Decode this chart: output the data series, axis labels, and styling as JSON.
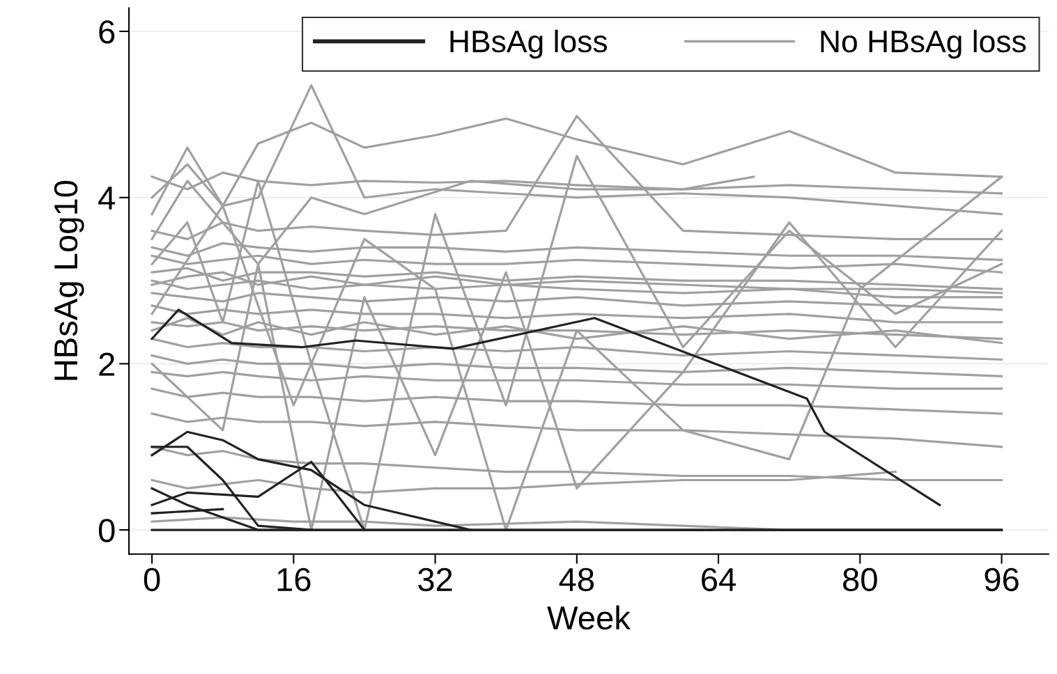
{
  "chart_data": {
    "type": "line",
    "xlabel": "Week",
    "ylabel": "HBsAg Log10",
    "xlim": [
      -2.6,
      101.3
    ],
    "ylim": [
      -0.29,
      6.28
    ],
    "xticks": [
      0,
      16,
      32,
      48,
      64,
      80,
      96
    ],
    "yticks": [
      0,
      2,
      4,
      6
    ],
    "grid": "y",
    "legend": "top right",
    "marker": "none",
    "line_style": "solid",
    "series": [
      {
        "name": "HBsAg loss",
        "color": "#222222",
        "x": [
          0,
          3,
          9,
          17,
          23,
          34,
          50,
          74,
          76,
          89
        ],
        "values": [
          2.3,
          2.65,
          2.25,
          2.2,
          2.28,
          2.18,
          2.55,
          1.58,
          1.18,
          0.3
        ]
      },
      {
        "color": "#222222",
        "x": [
          0,
          4,
          8,
          12,
          18,
          24,
          36,
          96
        ],
        "values": [
          0.9,
          1.18,
          1.08,
          0.85,
          0.72,
          0.3,
          0.0,
          0.0
        ]
      },
      {
        "color": "#222222",
        "x": [
          0,
          4,
          8,
          12,
          18
        ],
        "values": [
          1.0,
          1.0,
          0.6,
          0.05,
          0.0
        ]
      },
      {
        "color": "#222222",
        "x": [
          0,
          4,
          12,
          18,
          24
        ],
        "values": [
          0.3,
          0.45,
          0.4,
          0.82,
          0.0
        ]
      },
      {
        "color": "#222222",
        "x": [
          0,
          4,
          12,
          36
        ],
        "values": [
          0.5,
          0.3,
          0.0,
          0.0
        ]
      },
      {
        "color": "#222222",
        "x": [
          0,
          8
        ],
        "values": [
          0.2,
          0.25
        ]
      },
      {
        "color": "#222222",
        "x": [
          0,
          96
        ],
        "values": [
          0.0,
          0.0
        ]
      },
      {
        "name": "No HBsAg loss",
        "color": "#a0a0a0",
        "x": [
          0,
          4,
          8,
          12,
          18,
          24,
          32,
          40,
          48,
          60,
          72,
          84,
          96
        ],
        "values": [
          4.25,
          4.1,
          4.3,
          4.2,
          4.15,
          4.2,
          4.18,
          4.2,
          4.15,
          4.1,
          4.15,
          4.1,
          4.05
        ]
      },
      {
        "color": "#a0a0a0",
        "x": [
          0,
          4,
          8,
          12,
          18,
          24,
          32,
          40,
          48,
          60,
          72,
          84,
          96
        ],
        "values": [
          4.0,
          4.4,
          3.9,
          4.0,
          5.35,
          4.0,
          4.1,
          4.05,
          4.0,
          4.05,
          4.0,
          3.9,
          3.8
        ]
      },
      {
        "color": "#a0a0a0",
        "x": [
          0,
          4,
          8,
          12,
          18,
          24,
          32,
          40,
          48,
          60,
          72,
          84,
          96
        ],
        "values": [
          3.8,
          4.6,
          3.9,
          4.65,
          4.9,
          4.6,
          4.75,
          4.95,
          4.7,
          4.4,
          4.8,
          4.3,
          4.25
        ]
      },
      {
        "color": "#a0a0a0",
        "x": [
          0,
          4,
          8,
          12,
          18,
          24,
          32,
          40,
          48,
          60,
          72,
          84,
          96
        ],
        "values": [
          3.6,
          3.5,
          3.7,
          3.6,
          3.65,
          3.6,
          3.55,
          3.6,
          4.98,
          3.6,
          3.55,
          3.5,
          3.5
        ]
      },
      {
        "color": "#a0a0a0",
        "x": [
          0,
          4,
          8,
          12,
          18,
          24,
          32,
          40,
          48,
          60,
          72,
          84,
          96
        ],
        "values": [
          3.4,
          3.3,
          3.45,
          3.4,
          3.35,
          3.4,
          3.4,
          3.35,
          3.4,
          3.35,
          3.3,
          3.3,
          3.25
        ]
      },
      {
        "color": "#a0a0a0",
        "x": [
          0,
          4,
          8,
          12,
          18,
          24,
          32,
          40,
          48,
          60,
          72,
          84,
          96
        ],
        "values": [
          3.3,
          3.2,
          3.25,
          3.3,
          3.2,
          3.25,
          3.2,
          3.2,
          3.25,
          3.2,
          3.15,
          3.2,
          3.1
        ]
      },
      {
        "color": "#a0a0a0",
        "x": [
          0,
          4,
          8,
          12,
          18,
          24,
          32,
          40,
          48,
          60,
          72,
          84,
          96
        ],
        "values": [
          3.1,
          3.15,
          3.0,
          3.1,
          3.1,
          3.05,
          3.1,
          3.0,
          3.05,
          3.0,
          3.0,
          2.95,
          2.9
        ]
      },
      {
        "color": "#a0a0a0",
        "x": [
          0,
          4,
          8,
          12,
          18,
          24,
          32,
          40,
          48,
          60,
          72,
          84,
          96
        ],
        "values": [
          3.0,
          2.9,
          2.95,
          3.0,
          2.9,
          2.95,
          2.9,
          2.95,
          2.9,
          2.85,
          2.9,
          2.8,
          2.8
        ]
      },
      {
        "color": "#a0a0a0",
        "x": [
          0,
          4,
          8,
          12,
          18,
          24,
          32,
          40,
          48,
          60,
          72,
          84,
          96
        ],
        "values": [
          2.85,
          2.8,
          2.75,
          2.85,
          2.8,
          2.75,
          2.8,
          2.75,
          2.8,
          2.7,
          2.75,
          2.7,
          2.65
        ]
      },
      {
        "color": "#a0a0a0",
        "x": [
          0,
          4,
          8,
          12,
          18,
          24,
          32,
          40,
          48,
          60,
          72,
          84,
          96
        ],
        "values": [
          2.7,
          2.6,
          2.65,
          2.6,
          2.65,
          2.6,
          2.6,
          2.55,
          2.6,
          2.55,
          2.6,
          2.5,
          2.5
        ]
      },
      {
        "color": "#a0a0a0",
        "x": [
          0,
          4,
          8,
          12,
          18,
          24,
          32,
          40,
          48,
          60,
          72,
          84,
          96
        ],
        "values": [
          2.5,
          2.45,
          2.5,
          2.4,
          2.45,
          2.4,
          2.45,
          2.4,
          2.4,
          2.35,
          2.4,
          2.35,
          2.3
        ]
      },
      {
        "color": "#a0a0a0",
        "x": [
          0,
          4,
          8,
          12,
          18,
          24,
          32,
          40,
          48,
          60,
          72,
          84,
          96
        ],
        "values": [
          2.3,
          2.2,
          2.25,
          2.2,
          2.2,
          2.15,
          2.2,
          2.15,
          2.2,
          2.1,
          2.15,
          2.1,
          2.05
        ]
      },
      {
        "color": "#a0a0a0",
        "x": [
          0,
          4,
          8,
          12,
          18,
          24,
          32,
          40,
          48,
          60,
          72,
          84,
          96
        ],
        "values": [
          2.1,
          2.0,
          2.05,
          2.0,
          2.0,
          1.95,
          2.0,
          1.95,
          1.95,
          1.9,
          1.95,
          1.9,
          1.85
        ]
      },
      {
        "color": "#a0a0a0",
        "x": [
          0,
          4,
          8,
          12,
          18,
          24,
          32,
          40,
          48,
          60,
          72,
          84,
          96
        ],
        "values": [
          1.9,
          1.85,
          1.9,
          1.85,
          1.8,
          1.85,
          1.8,
          1.8,
          1.8,
          1.75,
          1.75,
          1.7,
          1.7
        ]
      },
      {
        "color": "#a0a0a0",
        "x": [
          0,
          4,
          8,
          12,
          18,
          24,
          32,
          40,
          48,
          60,
          72,
          84,
          96
        ],
        "values": [
          1.7,
          1.6,
          1.65,
          1.6,
          1.6,
          1.55,
          1.6,
          1.55,
          1.55,
          1.5,
          1.5,
          1.45,
          1.4
        ]
      },
      {
        "color": "#a0a0a0",
        "x": [
          0,
          4,
          8,
          12,
          18,
          24,
          32,
          40,
          48,
          60,
          72,
          84,
          96
        ],
        "values": [
          1.4,
          1.3,
          1.35,
          1.3,
          1.3,
          1.25,
          1.3,
          1.25,
          1.2,
          1.2,
          1.15,
          1.1,
          1.0
        ]
      },
      {
        "color": "#a0a0a0",
        "x": [
          0,
          4,
          8,
          12,
          18,
          24,
          32,
          40,
          48,
          60,
          72,
          84,
          96
        ],
        "values": [
          1.0,
          0.9,
          0.95,
          0.85,
          0.8,
          0.8,
          0.75,
          0.7,
          0.7,
          0.65,
          0.65,
          0.6,
          0.6
        ]
      },
      {
        "color": "#a0a0a0",
        "x": [
          0,
          4,
          8,
          12,
          18,
          24,
          32,
          40,
          48,
          60,
          72,
          84
        ],
        "values": [
          0.6,
          0.5,
          0.55,
          0.6,
          0.5,
          0.45,
          0.5,
          0.5,
          0.55,
          0.6,
          0.6,
          0.7
        ]
      },
      {
        "color": "#a0a0a0",
        "x": [
          0,
          8,
          16,
          24,
          32,
          48,
          60,
          72,
          96
        ],
        "values": [
          0.1,
          0.15,
          0.1,
          0.1,
          0.05,
          0.1,
          0.05,
          0.0,
          0.0
        ]
      },
      {
        "color": "#a0a0a0",
        "x": [
          0,
          4,
          8,
          12,
          18,
          24,
          32,
          40,
          48,
          60,
          72,
          84,
          96
        ],
        "values": [
          3.2,
          3.7,
          2.5,
          4.2,
          2.0,
          0.0,
          3.8,
          1.5,
          4.5,
          2.2,
          3.6,
          2.6,
          3.2
        ]
      },
      {
        "color": "#a0a0a0",
        "x": [
          0,
          8,
          16,
          24,
          32,
          40,
          48,
          60,
          72,
          80,
          96
        ],
        "values": [
          2.6,
          3.9,
          1.5,
          3.5,
          2.9,
          0.0,
          2.4,
          1.2,
          0.85,
          2.9,
          4.25
        ]
      },
      {
        "color": "#a0a0a0",
        "x": [
          0,
          8,
          12,
          18,
          24,
          32,
          40,
          48,
          60,
          72,
          84,
          96
        ],
        "values": [
          2.0,
          1.2,
          3.2,
          0.0,
          2.8,
          0.9,
          3.1,
          0.5,
          1.9,
          3.7,
          2.2,
          3.6
        ]
      },
      {
        "color": "#a0a0a0",
        "x": [
          0,
          4,
          12,
          18,
          24,
          36,
          48,
          60,
          68
        ],
        "values": [
          3.5,
          4.2,
          3.2,
          4.0,
          3.8,
          4.2,
          4.1,
          4.1,
          4.25
        ]
      },
      {
        "color": "#a0a0a0",
        "x": [
          0,
          4,
          8,
          12,
          18,
          24,
          32,
          40,
          48,
          60,
          72,
          84,
          96
        ],
        "values": [
          2.95,
          3.05,
          3.1,
          2.95,
          3.05,
          2.95,
          3.05,
          2.95,
          3.0,
          2.95,
          2.9,
          2.9,
          2.85
        ]
      },
      {
        "color": "#a0a0a0",
        "x": [
          0,
          4,
          8,
          12,
          18,
          24,
          32,
          40,
          48,
          60,
          72,
          84,
          96
        ],
        "values": [
          2.4,
          2.55,
          2.35,
          2.5,
          2.35,
          2.5,
          2.35,
          2.45,
          2.3,
          2.45,
          2.3,
          2.4,
          2.25
        ]
      }
    ]
  }
}
